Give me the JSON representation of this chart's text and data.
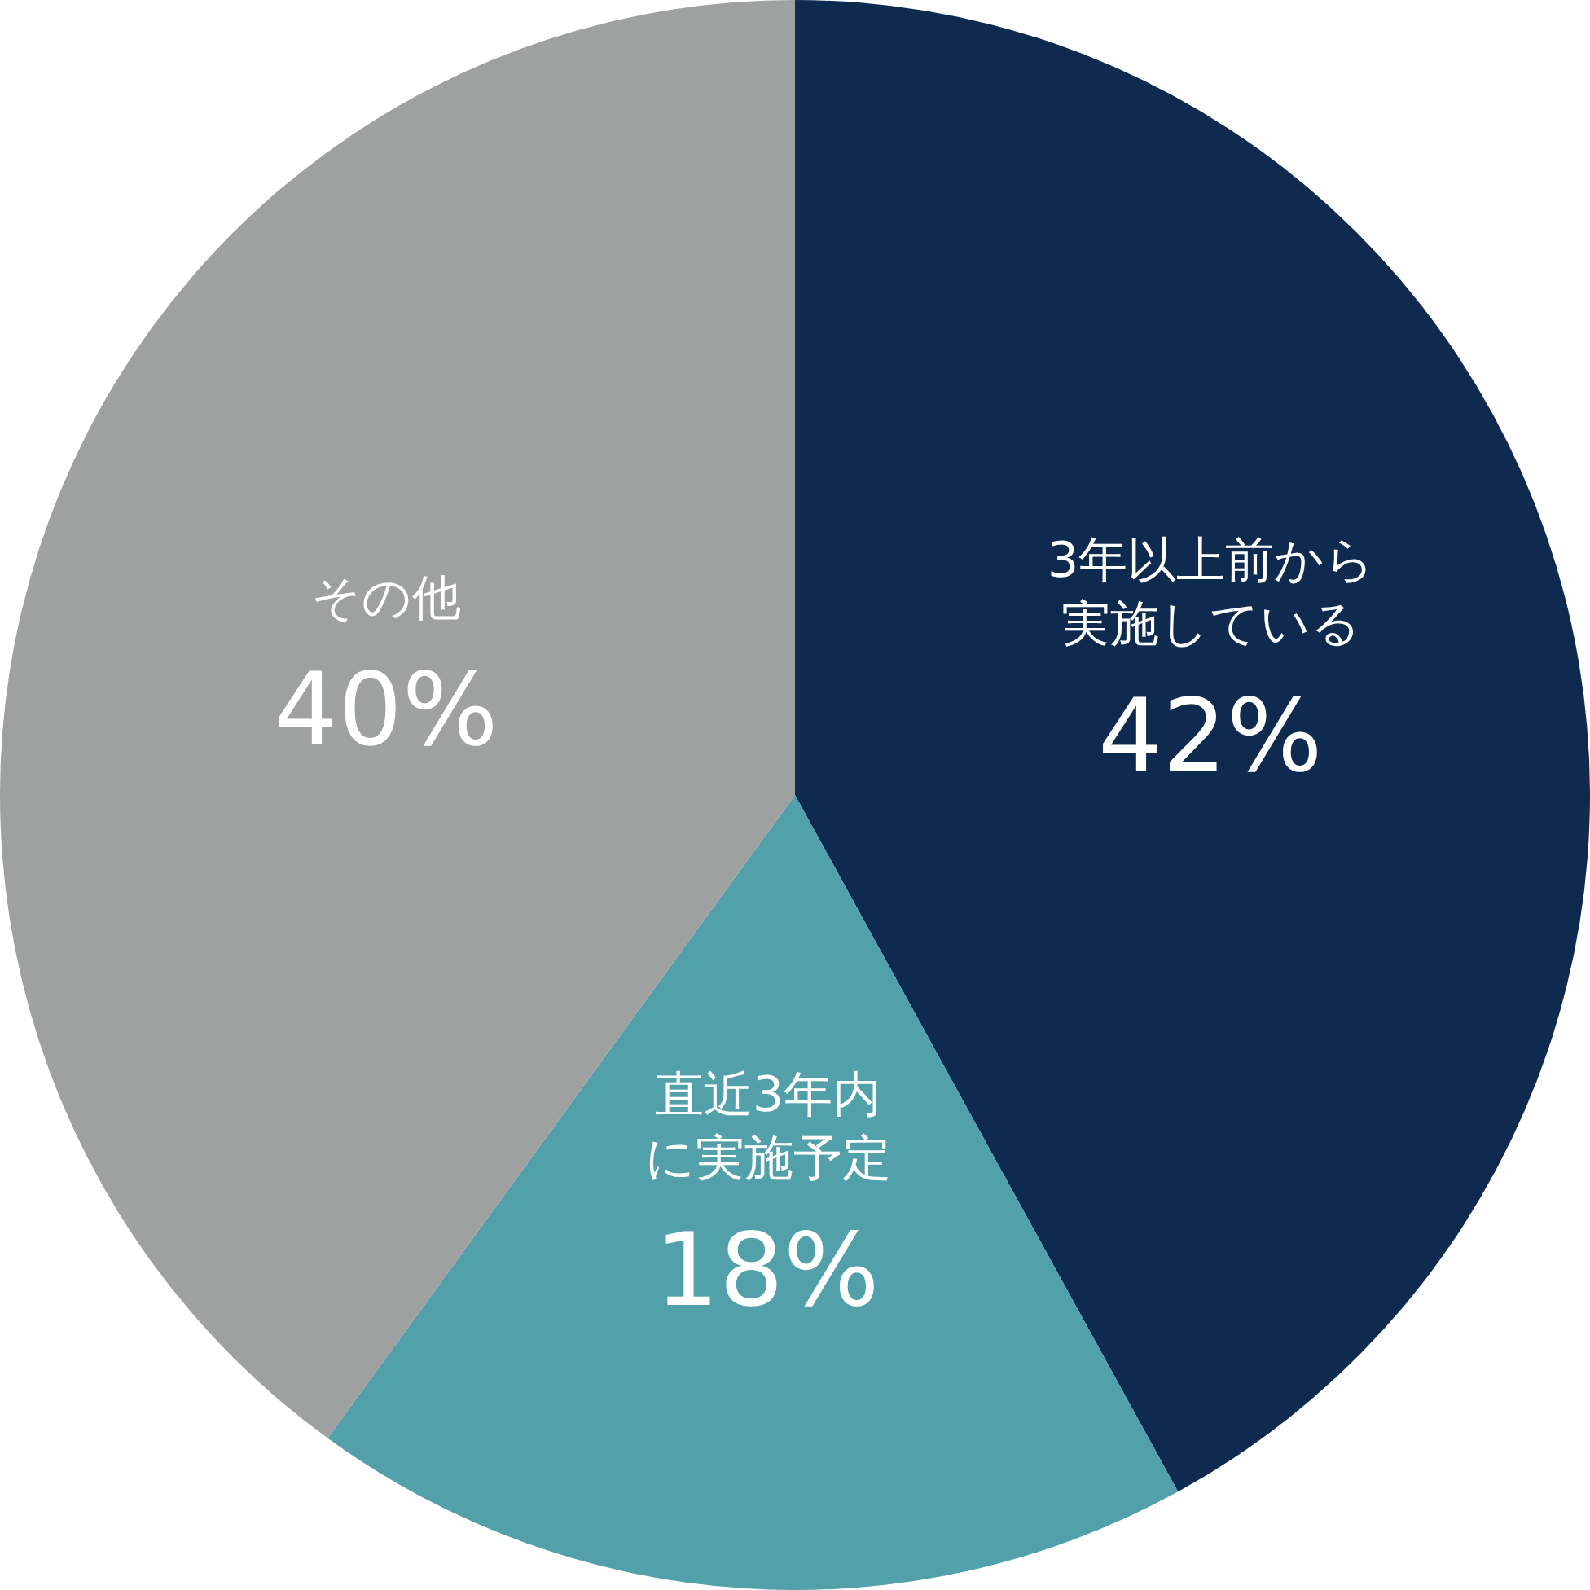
{
  "chart_data": {
    "type": "pie",
    "categories": [
      "3年以上前から実施している",
      "直近3年内に実施予定",
      "その他"
    ],
    "values": [
      42,
      18,
      40
    ],
    "value_labels": [
      "42%",
      "18%",
      "40%"
    ],
    "colors": [
      "#0e2a4e",
      "#52a0aa",
      "#9fa0a0"
    ],
    "legend": false
  }
}
